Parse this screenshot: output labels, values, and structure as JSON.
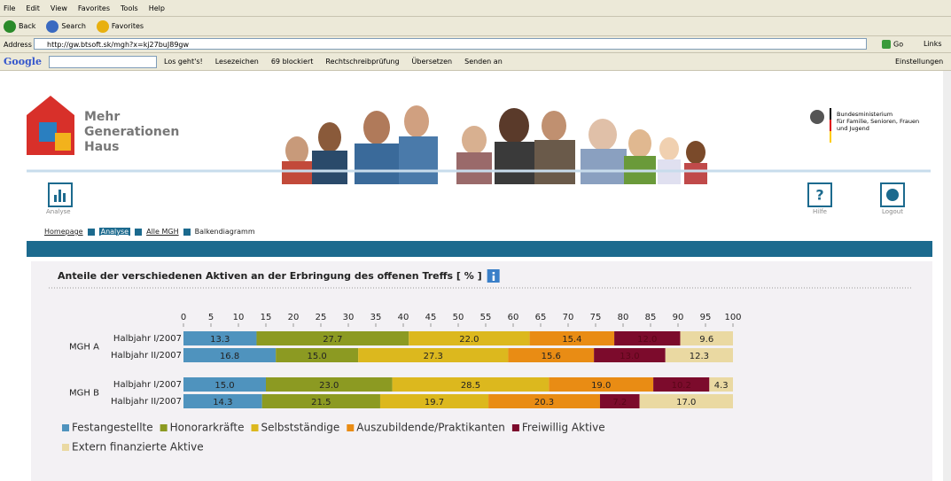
{
  "browser": {
    "menu": [
      "File",
      "Edit",
      "View",
      "Favorites",
      "Tools",
      "Help"
    ],
    "toolbar": [
      "Back",
      "Search",
      "Favorites"
    ],
    "address_label": "Address",
    "url": "http://gw.btsoft.sk/mgh?x=kj27buJ89gw",
    "go": "Go",
    "links": "Links",
    "google": {
      "logo": "Google",
      "search_button": "Los geht's!",
      "items": [
        "Lesezeichen",
        "69 blockiert",
        "Rechtschreibprüfung",
        "Übersetzen",
        "Senden an"
      ],
      "settings": "Einstellungen"
    }
  },
  "header": {
    "logo_lines": [
      "Mehr",
      "Generationen",
      "Haus"
    ],
    "ministry_lines": [
      "Bundesministerium",
      "für Familie, Senioren, Frauen",
      "und Jugend"
    ]
  },
  "nav": {
    "analyse": "Analyse",
    "help": "Hilfe",
    "logout": "Logout"
  },
  "breadcrumb": [
    "Homepage",
    "Analyse",
    "Alle MGH",
    "Balkendiagramm"
  ],
  "chart_data": {
    "type": "bar",
    "orientation": "horizontal",
    "stacked": true,
    "title": "Anteile der verschiedenen Aktiven an der Erbringung des offenen Treffs [ % ]",
    "groups": [
      {
        "name": "MGH A",
        "categories": [
          "Halbjahr I/2007",
          "Halbjahr II/2007"
        ]
      },
      {
        "name": "MGH B",
        "categories": [
          "Halbjahr I/2007",
          "Halbjahr II/2007"
        ]
      }
    ],
    "xlim": [
      0,
      100
    ],
    "xticks": [
      0,
      5,
      10,
      15,
      20,
      25,
      30,
      35,
      40,
      45,
      50,
      55,
      60,
      65,
      70,
      75,
      80,
      85,
      90,
      95,
      100
    ],
    "series": [
      {
        "name": "Festangestellte",
        "color": "#4f93be",
        "values": [
          13.3,
          16.8,
          15,
          14.3
        ],
        "value_labels": [
          "13.3",
          "16.8",
          "15.0",
          "14.3"
        ]
      },
      {
        "name": "Honorarkräfte",
        "color": "#8c9a22",
        "values": [
          27.7,
          15,
          23,
          21.5
        ],
        "value_labels": [
          "27.7",
          "15.0",
          "23.0",
          "21.5"
        ]
      },
      {
        "name": "Selbstständige",
        "color": "#dcb81e",
        "values": [
          22,
          27.3,
          28.5,
          19.7
        ],
        "value_labels": [
          "22.0",
          "27.3",
          "28.5",
          "19.7"
        ]
      },
      {
        "name": "Auszubildende/Praktikanten",
        "color": "#e98c14",
        "values": [
          15.4,
          15.6,
          19,
          20.3
        ],
        "value_labels": [
          "15.4",
          "15.6",
          "19.0",
          "20.3"
        ]
      },
      {
        "name": "Freiwillig Aktive",
        "color": "#7c0b2c",
        "values": [
          12,
          13,
          10.2,
          7.2
        ],
        "value_labels": [
          "12.0",
          "13.0",
          "10.2",
          "7.2"
        ]
      },
      {
        "name": "Extern finanzierte Aktive",
        "color": "#ead9a2",
        "values": [
          9.6,
          12.3,
          4.3,
          17
        ],
        "value_labels": [
          "9.6",
          "12.3",
          "4.3",
          "17.0"
        ]
      }
    ]
  }
}
